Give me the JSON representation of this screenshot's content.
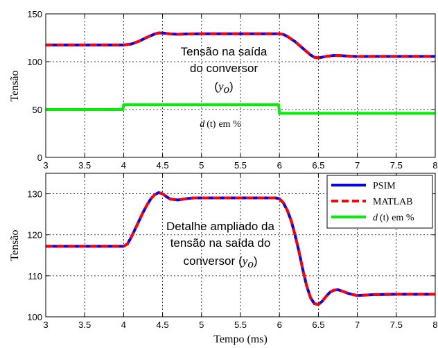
{
  "chart_data": [
    {
      "type": "line",
      "title": "",
      "xlabel": "",
      "ylabel": "Tensão",
      "xlim": [
        3,
        8
      ],
      "ylim": [
        0,
        150
      ],
      "xticks": [
        3,
        3.5,
        4,
        4.5,
        5,
        5.5,
        6,
        6.5,
        7,
        7.5,
        8
      ],
      "yticks": [
        0,
        50,
        100,
        150
      ],
      "xtick_labels": [
        "3",
        "3.5",
        "4",
        "4.5",
        "5",
        "5.5",
        "6",
        "6.5",
        "7",
        "7.5",
        "8"
      ],
      "ytick_labels": [
        "0",
        "50",
        "100",
        "150"
      ],
      "grid": true,
      "annotations": {
        "output_line1": "Tensão na saída",
        "output_line2": "do conversor",
        "output_var_open": "(",
        "output_var": "y",
        "output_var_sub": "o",
        "output_var_close": ")",
        "duty_var": "d",
        "duty_arg": "(t)",
        "duty_unit": "em %"
      },
      "series": [
        {
          "name": "PSIM",
          "color": "#0000ff",
          "x": [
            3,
            4.0,
            4.1,
            4.2,
            4.3,
            4.4,
            4.45,
            4.5,
            4.6,
            4.7,
            4.8,
            5.0,
            5.5,
            5.95,
            6.0,
            6.05,
            6.1,
            6.2,
            6.3,
            6.4,
            6.45,
            6.5,
            6.6,
            6.7,
            6.8,
            6.9,
            7.0,
            7.2,
            7.5,
            8.0
          ],
          "y": [
            117.5,
            117.5,
            118.5,
            121.5,
            125.5,
            129,
            130,
            130,
            129,
            128.6,
            129,
            129.2,
            129.2,
            129.2,
            129.2,
            128.5,
            126.5,
            121,
            114,
            107,
            104.5,
            104,
            105.5,
            106.5,
            106.3,
            105.7,
            105.4,
            105.5,
            105.5,
            105.5
          ]
        },
        {
          "name": "MATLAB",
          "color": "#ff0000",
          "x": [
            3,
            4.0,
            4.1,
            4.2,
            4.3,
            4.4,
            4.45,
            4.5,
            4.6,
            4.7,
            4.8,
            5.0,
            5.5,
            5.95,
            6.0,
            6.05,
            6.1,
            6.2,
            6.3,
            6.4,
            6.45,
            6.5,
            6.6,
            6.7,
            6.8,
            6.9,
            7.0,
            7.2,
            7.5,
            8.0
          ],
          "y": [
            117.5,
            117.5,
            118.5,
            121.5,
            125.5,
            129,
            130,
            130,
            129,
            128.6,
            129,
            129.2,
            129.2,
            129.2,
            129.2,
            128.5,
            126.5,
            121,
            114,
            107,
            104.5,
            104,
            105.5,
            106.5,
            106.3,
            105.7,
            105.4,
            105.5,
            105.5,
            105.5
          ]
        },
        {
          "name": "d (t) em %",
          "color": "#00ee00",
          "x": [
            3,
            3.99,
            4.0,
            5.99,
            6.0,
            8.0
          ],
          "y": [
            50,
            50,
            55,
            55,
            46,
            46
          ]
        }
      ]
    },
    {
      "type": "line",
      "title": "",
      "xlabel": "Tempo (ms)",
      "ylabel": "Tensão",
      "xlim": [
        3,
        8
      ],
      "ylim": [
        100,
        135
      ],
      "xticks": [
        3,
        3.5,
        4,
        4.5,
        5,
        5.5,
        6,
        6.5,
        7,
        7.5,
        8
      ],
      "yticks": [
        100,
        110,
        120,
        130
      ],
      "xtick_labels": [
        "3",
        "3.5",
        "4",
        "4.5",
        "5",
        "5.5",
        "6",
        "6.5",
        "7",
        "7.5",
        "8"
      ],
      "ytick_labels": [
        "100",
        "110",
        "120",
        "130"
      ],
      "grid": true,
      "legend_position": "top-right",
      "legend": [
        "PSIM",
        "MATLAB"
      ],
      "legend_third": {
        "var": "d",
        "arg": "(t)",
        "unit": "em %"
      },
      "annotations": {
        "line1": "Detalhe ampliado da",
        "line2": "tensão na saída do",
        "line3": "conversor",
        "var_open": "(",
        "var": "y",
        "var_sub": "o",
        "var_close": ")"
      },
      "series": [
        {
          "name": "PSIM",
          "color": "#0000ff",
          "x": [
            3,
            4.0,
            4.05,
            4.1,
            4.15,
            4.2,
            4.25,
            4.3,
            4.35,
            4.4,
            4.45,
            4.5,
            4.55,
            4.6,
            4.7,
            4.8,
            4.9,
            5.0,
            5.5,
            5.95,
            6.0,
            6.05,
            6.1,
            6.15,
            6.2,
            6.25,
            6.3,
            6.35,
            6.4,
            6.45,
            6.5,
            6.55,
            6.6,
            6.65,
            6.7,
            6.75,
            6.8,
            6.9,
            7.0,
            7.1,
            7.2,
            7.5,
            8.0
          ],
          "y": [
            117.2,
            117.2,
            117.8,
            119.5,
            121.5,
            123.5,
            125.5,
            127.3,
            128.8,
            129.8,
            130.3,
            130.0,
            129.3,
            128.7,
            128.5,
            128.8,
            129.0,
            129.0,
            129.0,
            129.0,
            128.8,
            127.8,
            126.0,
            123.5,
            120.0,
            116.0,
            111.5,
            107.5,
            104.6,
            103.2,
            103.0,
            103.8,
            105.0,
            106.0,
            106.5,
            106.6,
            106.3,
            105.6,
            105.2,
            105.3,
            105.4,
            105.5,
            105.5
          ]
        },
        {
          "name": "MATLAB",
          "color": "#ff0000",
          "x": [
            3,
            4.0,
            4.05,
            4.1,
            4.15,
            4.2,
            4.25,
            4.3,
            4.35,
            4.4,
            4.45,
            4.5,
            4.55,
            4.6,
            4.7,
            4.8,
            4.9,
            5.0,
            5.5,
            5.95,
            6.0,
            6.05,
            6.1,
            6.15,
            6.2,
            6.25,
            6.3,
            6.35,
            6.4,
            6.45,
            6.5,
            6.55,
            6.6,
            6.65,
            6.7,
            6.75,
            6.8,
            6.9,
            7.0,
            7.1,
            7.2,
            7.5,
            8.0
          ],
          "y": [
            117.2,
            117.2,
            117.8,
            119.5,
            121.5,
            123.5,
            125.5,
            127.3,
            128.8,
            129.8,
            130.3,
            130.0,
            129.3,
            128.7,
            128.5,
            128.8,
            129.0,
            129.0,
            129.0,
            129.0,
            128.8,
            127.8,
            126.0,
            123.5,
            120.0,
            116.0,
            111.5,
            107.5,
            104.6,
            103.2,
            103.0,
            103.8,
            105.0,
            106.0,
            106.5,
            106.6,
            106.3,
            105.6,
            105.2,
            105.3,
            105.4,
            105.5,
            105.5
          ]
        }
      ]
    }
  ]
}
